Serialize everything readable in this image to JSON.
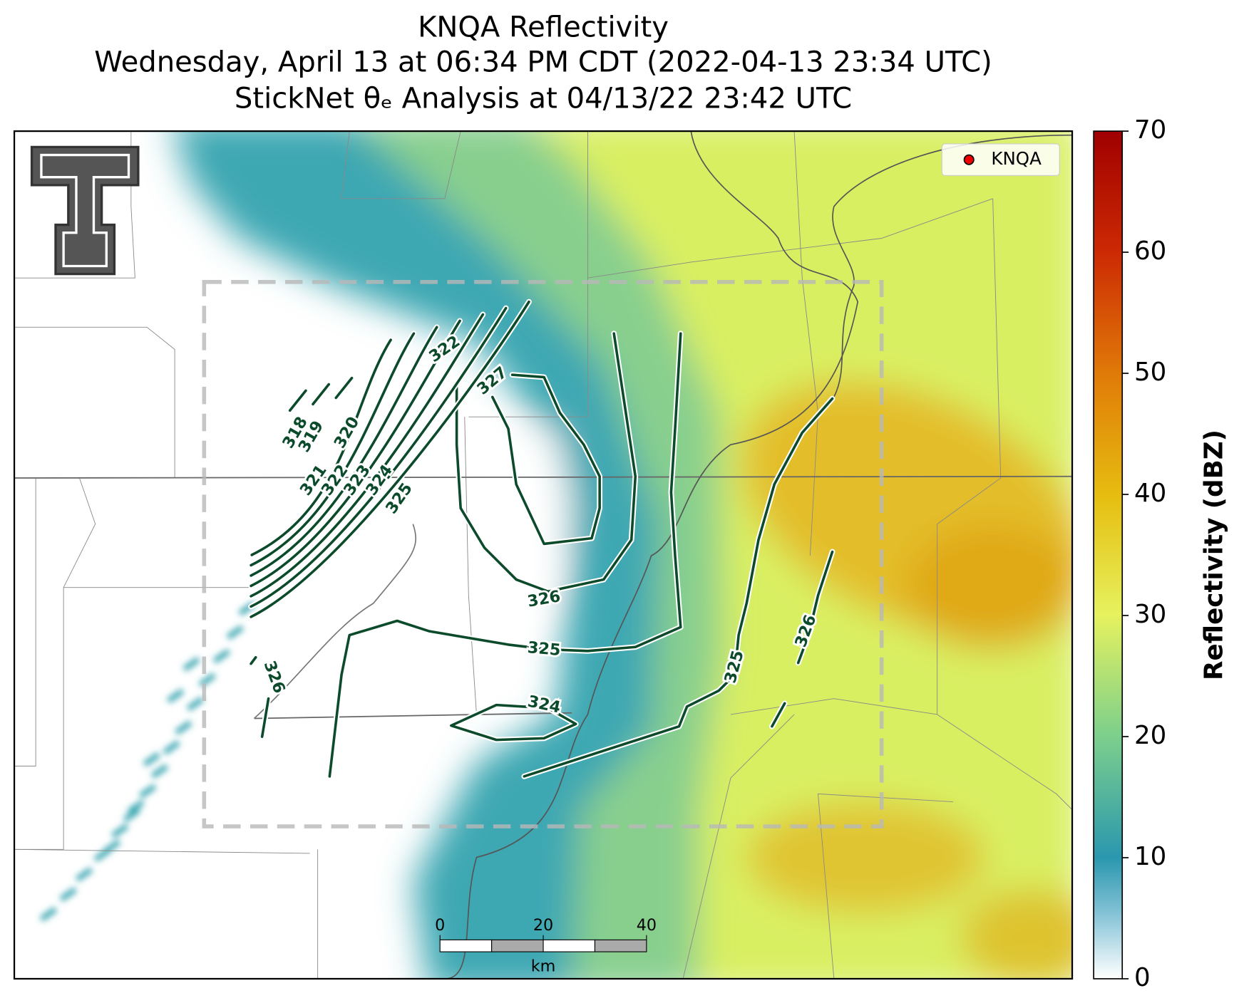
{
  "header": {
    "title": "KNQA Reflectivity",
    "subtitle": "Wednesday, April 13 at 06:34 PM CDT (2022-04-13 23:34 UTC)",
    "analysis": "StickNet θₑ Analysis at 04/13/22 23:42 UTC"
  },
  "legend": {
    "label": "KNQA"
  },
  "colorbar": {
    "label": "Reflectivity (dBZ)",
    "lim": [
      0,
      70
    ],
    "ticks": [
      0,
      10,
      20,
      30,
      40,
      50,
      60,
      70
    ]
  },
  "scale_bar": {
    "lim": [
      0,
      40
    ],
    "ticks": [
      0,
      20,
      40
    ],
    "unit": "km"
  },
  "contour_labels": [
    322,
    327,
    318,
    319,
    320,
    321,
    322,
    323,
    324,
    325,
    326,
    325,
    324,
    326,
    325,
    326
  ]
}
